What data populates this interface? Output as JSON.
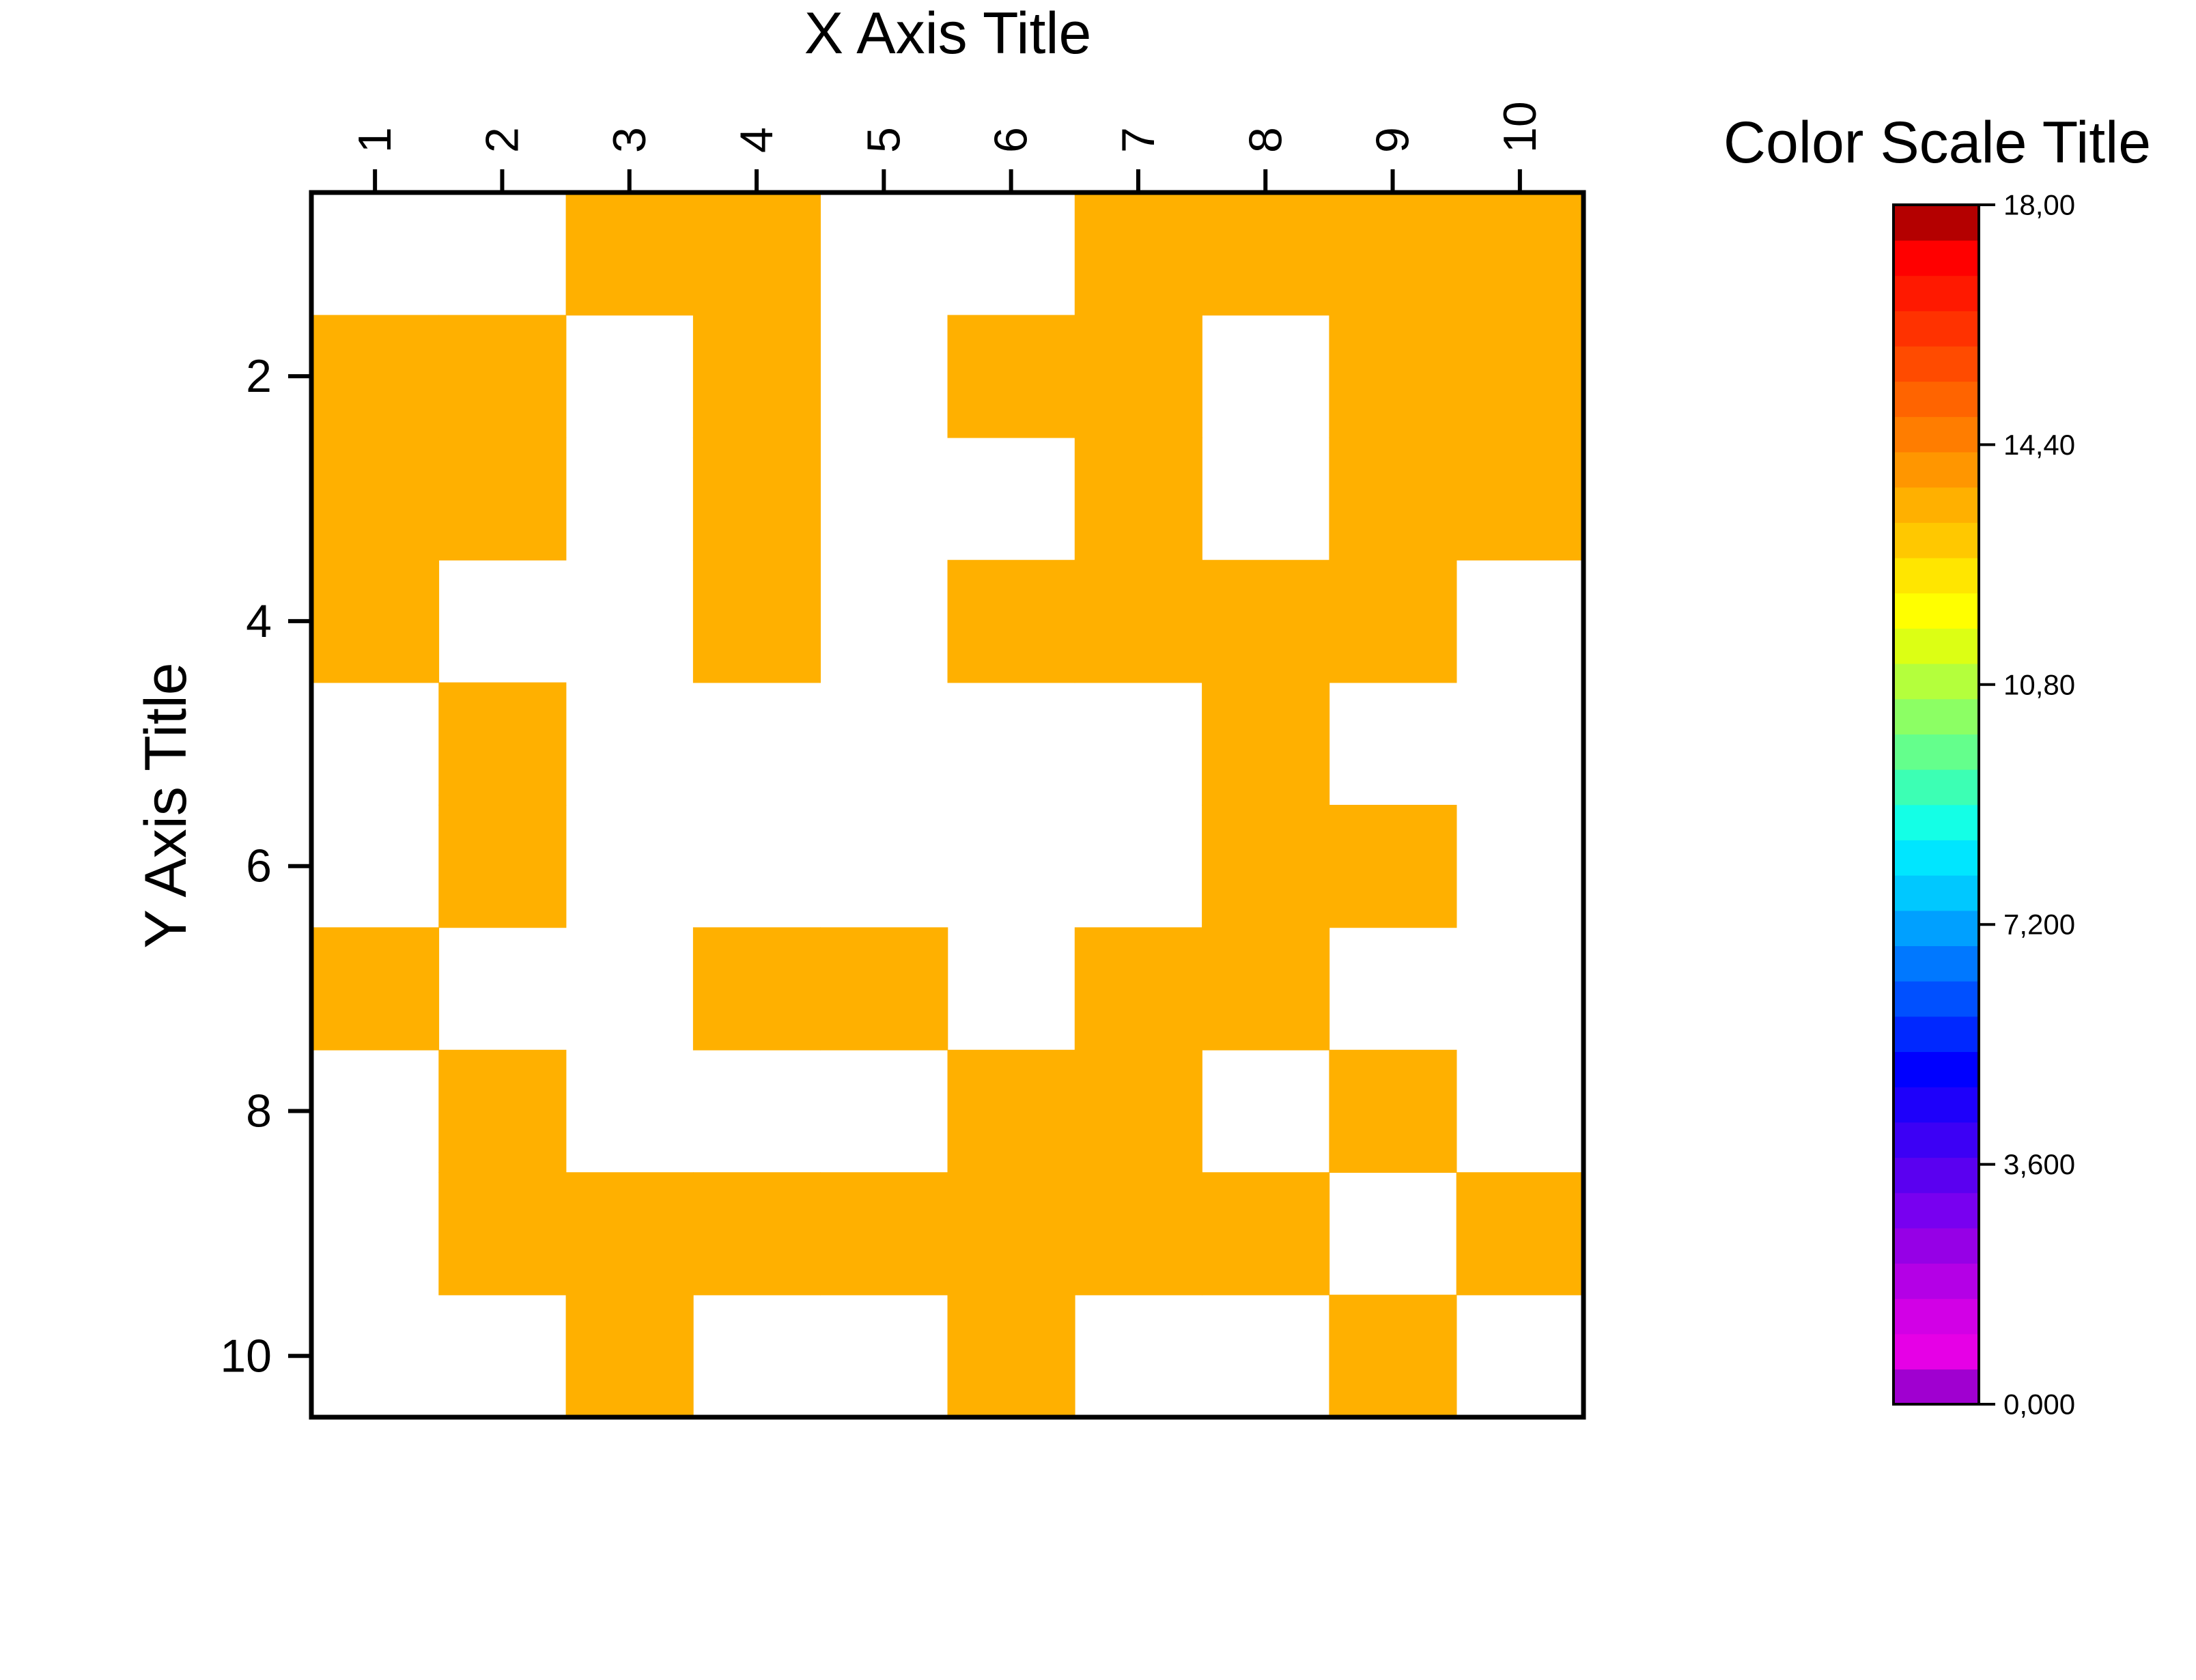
{
  "chart_data": {
    "type": "heatmap",
    "xlabel": "X Axis Title",
    "ylabel": "Y Axis Title",
    "x_categories": [
      "1",
      "2",
      "3",
      "4",
      "5",
      "6",
      "7",
      "8",
      "9",
      "10"
    ],
    "y_categories": [
      "1",
      "2",
      "3",
      "4",
      "5",
      "6",
      "7",
      "8",
      "9",
      "10"
    ],
    "x_tick_labels": [
      "1",
      "2",
      "3",
      "4",
      "5",
      "6",
      "7",
      "8",
      "9",
      "10"
    ],
    "y_tick_labels": [
      "2",
      "4",
      "6",
      "8",
      "10"
    ],
    "x_axis_position": "top",
    "y_axis_reversed": true,
    "fill_color": "#FFB000",
    "empty_color": "#FFFFFF",
    "matrix": [
      [
        0,
        0,
        1,
        1,
        0,
        0,
        1,
        1,
        1,
        1
      ],
      [
        1,
        1,
        0,
        1,
        0,
        1,
        1,
        0,
        1,
        1
      ],
      [
        1,
        1,
        0,
        1,
        0,
        0,
        1,
        0,
        1,
        1
      ],
      [
        1,
        0,
        0,
        1,
        0,
        1,
        1,
        1,
        1,
        0
      ],
      [
        0,
        1,
        0,
        0,
        0,
        0,
        0,
        1,
        0,
        0
      ],
      [
        0,
        1,
        0,
        0,
        0,
        0,
        0,
        1,
        1,
        0
      ],
      [
        1,
        0,
        0,
        1,
        1,
        0,
        1,
        1,
        0,
        0
      ],
      [
        0,
        1,
        0,
        0,
        0,
        1,
        1,
        0,
        1,
        0
      ],
      [
        0,
        1,
        1,
        1,
        1,
        1,
        1,
        1,
        0,
        1
      ],
      [
        0,
        0,
        1,
        0,
        0,
        1,
        0,
        0,
        1,
        0
      ]
    ],
    "color_scale": {
      "title": "Color Scale Title",
      "min": 0,
      "max": 18,
      "tick_labels": [
        "0,000",
        "3,600",
        "7,200",
        "10,80",
        "14,40",
        "18,00"
      ],
      "colors": [
        "#A000D0",
        "#E600E6",
        "#D200E6",
        "#B400E6",
        "#9600E6",
        "#7800F0",
        "#5A00F0",
        "#3C00F5",
        "#1E00FA",
        "#0000FF",
        "#0028FF",
        "#0050FF",
        "#0078FF",
        "#00A0FF",
        "#00C8FF",
        "#00E6FF",
        "#14FFE6",
        "#3CFFB4",
        "#64FF8C",
        "#8CFF64",
        "#B4FF3C",
        "#DCFF14",
        "#FFFF00",
        "#FFE600",
        "#FFC800",
        "#FFB000",
        "#FF9600",
        "#FF7D00",
        "#FF6400",
        "#FF4B00",
        "#FF3200",
        "#FF1900",
        "#FF0000",
        "#B40000"
      ]
    }
  }
}
